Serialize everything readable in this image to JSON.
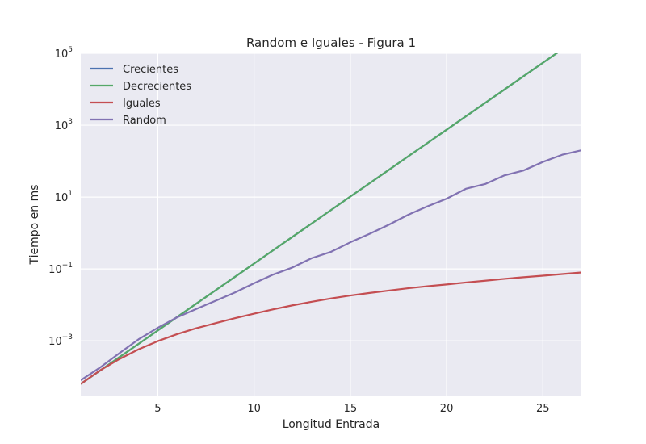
{
  "chart_data": {
    "type": "line",
    "title": "Random e Iguales - Figura 1",
    "xlabel": "Longitud Entrada",
    "ylabel": "Tiempo en ms",
    "y_scale": "log",
    "xlim": [
      1,
      27
    ],
    "ylim": [
      3e-05,
      100000
    ],
    "grid": true,
    "legend_position": "top-left",
    "x_ticks": [
      5,
      10,
      15,
      20,
      25
    ],
    "y_ticks": [
      {
        "value": 0.001,
        "base": "10",
        "exp": "−3"
      },
      {
        "value": 0.1,
        "base": "10",
        "exp": "−1"
      },
      {
        "value": 10,
        "base": "10",
        "exp": "1"
      },
      {
        "value": 1000,
        "base": "10",
        "exp": "3"
      },
      {
        "value": 100000,
        "base": "10",
        "exp": "5"
      }
    ],
    "x": [
      1,
      2,
      3,
      4,
      5,
      6,
      7,
      8,
      9,
      10,
      11,
      12,
      13,
      14,
      15,
      16,
      17,
      18,
      19,
      20,
      21,
      22,
      23,
      24,
      25,
      26,
      27
    ],
    "series": [
      {
        "name": "Crecientes",
        "color": "#4c72b0",
        "values": [
          6.3e-05,
          0.000148,
          0.000349,
          0.000822,
          0.00194,
          0.00457,
          0.0108,
          0.0254,
          0.0598,
          0.141,
          0.333,
          0.784,
          1.85,
          4.36,
          10.3,
          24.2,
          57.1,
          135,
          317,
          748,
          1763,
          4155,
          9795,
          23090,
          54430,
          128300,
          302400
        ]
      },
      {
        "name": "Decrecientes",
        "color": "#55a868",
        "values": [
          6.3e-05,
          0.000148,
          0.000349,
          0.000822,
          0.00194,
          0.00457,
          0.0108,
          0.0254,
          0.0598,
          0.141,
          0.333,
          0.784,
          1.85,
          4.36,
          10.3,
          24.2,
          57.1,
          135,
          317,
          748,
          1763,
          4155,
          9795,
          23090,
          54430,
          128300,
          302400
        ]
      },
      {
        "name": "Iguales",
        "color": "#c44e52",
        "values": [
          6.3e-05,
          0.00015,
          0.00031,
          0.00058,
          0.00098,
          0.00153,
          0.00224,
          0.0031,
          0.00425,
          0.0057,
          0.0075,
          0.0097,
          0.0122,
          0.0151,
          0.0182,
          0.0215,
          0.025,
          0.029,
          0.033,
          0.037,
          0.042,
          0.047,
          0.053,
          0.059,
          0.065,
          0.072,
          0.08
        ]
      },
      {
        "name": "Random",
        "color": "#8172b2",
        "values": [
          8e-05,
          0.00018,
          0.00045,
          0.0011,
          0.0023,
          0.0045,
          0.0077,
          0.013,
          0.022,
          0.04,
          0.07,
          0.11,
          0.2,
          0.3,
          0.55,
          0.95,
          1.7,
          3.2,
          5.5,
          9,
          17,
          23,
          40,
          55,
          95,
          150,
          200
        ]
      }
    ]
  }
}
